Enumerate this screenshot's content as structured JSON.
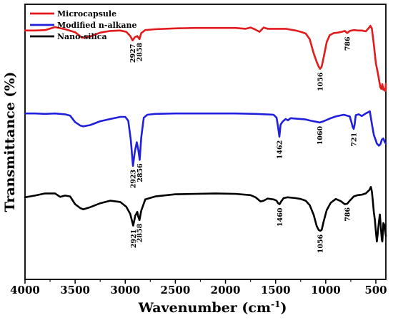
{
  "chart_data": {
    "type": "line",
    "title": "",
    "xlabel": "Wavenumber (cm",
    "xlabel_sup": "-1",
    "xlabel_end": ")",
    "ylabel": "Transmittance (%)",
    "xlim": [
      4000,
      400
    ],
    "x_reversed": true,
    "y_ticks_shown": false,
    "xticks": [
      "4000",
      "3500",
      "3000",
      "2500",
      "2000",
      "1500",
      "1000",
      "500"
    ],
    "xtick_values": [
      4000,
      3500,
      3000,
      2500,
      2000,
      1500,
      1000,
      500
    ],
    "grid": false,
    "legend_position": "top-left",
    "series": [
      {
        "name": "Microcapsule",
        "color": "#e31a1c",
        "x": [
          4000,
          3900,
          3800,
          3700,
          3600,
          3500,
          3430,
          3350,
          3250,
          3150,
          3050,
          2990,
          2950,
          2927,
          2905,
          2880,
          2858,
          2840,
          2800,
          2700,
          2500,
          2300,
          2100,
          1900,
          1800,
          1750,
          1700,
          1660,
          1620,
          1580,
          1500,
          1400,
          1300,
          1250,
          1200,
          1160,
          1120,
          1090,
          1070,
          1056,
          1040,
          1020,
          990,
          960,
          920,
          880,
          840,
          810,
          786,
          760,
          720,
          680,
          640,
          600,
          570,
          555,
          540,
          520,
          500,
          480,
          465,
          455,
          445,
          435,
          425,
          415,
          405,
          400
        ],
        "y": [
          97.9,
          97.9,
          98.0,
          98.7,
          98.2,
          97.5,
          96.2,
          96.5,
          97.4,
          97.8,
          97.9,
          97.6,
          96.6,
          95.6,
          96.3,
          96.6,
          95.9,
          97.3,
          98.0,
          98.2,
          98.4,
          98.5,
          98.5,
          98.5,
          98.3,
          98.6,
          98.1,
          97.6,
          98.6,
          98.3,
          98.3,
          98.3,
          97.9,
          97.6,
          97.2,
          95.9,
          92.6,
          90.6,
          89.5,
          89.0,
          89.5,
          91.7,
          95.2,
          96.8,
          97.3,
          97.4,
          97.6,
          97.8,
          97.3,
          97.8,
          98.0,
          97.9,
          97.9,
          97.7,
          98.5,
          99.0,
          98.4,
          94.6,
          90.3,
          88.0,
          86.0,
          84.7,
          84.3,
          85.4,
          84.1,
          84.3,
          83.8,
          85.5
        ],
        "peak_labels": [
          {
            "text": "2927",
            "x": 2927,
            "y": 95.6
          },
          {
            "text": "2858",
            "x": 2858,
            "y": 95.9
          },
          {
            "text": "1056",
            "x": 1056,
            "y": 89.0
          },
          {
            "text": "786",
            "x": 786,
            "y": 97.3
          }
        ]
      },
      {
        "name": "Modified n-alkane",
        "color": "#1f1fdc",
        "x": [
          4000,
          3900,
          3800,
          3700,
          3600,
          3550,
          3500,
          3450,
          3420,
          3350,
          3250,
          3150,
          3050,
          3000,
          2970,
          2945,
          2923,
          2905,
          2885,
          2870,
          2856,
          2840,
          2815,
          2780,
          2700,
          2500,
          2300,
          2100,
          1900,
          1700,
          1600,
          1520,
          1490,
          1475,
          1462,
          1450,
          1430,
          1400,
          1377,
          1350,
          1300,
          1200,
          1150,
          1100,
          1060,
          1020,
          960,
          900,
          820,
          760,
          740,
          730,
          721,
          712,
          700,
          670,
          640,
          600,
          560,
          540,
          520,
          500,
          490,
          470,
          455,
          440,
          425,
          410,
          400
        ],
        "y": [
          78.6,
          78.6,
          78.5,
          78.6,
          78.4,
          78.1,
          76.6,
          75.8,
          75.6,
          75.9,
          76.8,
          77.3,
          77.8,
          77.8,
          76.9,
          72.5,
          66.4,
          69.6,
          71.9,
          70.2,
          67.8,
          73.1,
          77.6,
          78.3,
          78.5,
          78.6,
          78.6,
          78.6,
          78.6,
          78.5,
          78.4,
          78.3,
          77.6,
          75.4,
          73.2,
          76.0,
          76.7,
          77.3,
          77.0,
          77.5,
          77.4,
          77.2,
          76.9,
          76.7,
          76.5,
          76.8,
          77.4,
          77.9,
          78.3,
          77.9,
          76.3,
          75.4,
          75.0,
          75.9,
          78.2,
          78.4,
          78.0,
          78.6,
          79.1,
          76.2,
          73.6,
          72.3,
          71.6,
          71.1,
          71.4,
          72.5,
          72.8,
          71.9,
          71.6
        ],
        "peak_labels": [
          {
            "text": "2923",
            "x": 2923,
            "y": 66.4
          },
          {
            "text": "2856",
            "x": 2856,
            "y": 67.8
          },
          {
            "text": "1462",
            "x": 1462,
            "y": 73.2
          },
          {
            "text": "1060",
            "x": 1060,
            "y": 76.5
          },
          {
            "text": "721",
            "x": 721,
            "y": 75.0
          }
        ]
      },
      {
        "name": "Nano-silica",
        "color": "#000000",
        "x": [
          4000,
          3900,
          3800,
          3700,
          3650,
          3600,
          3550,
          3500,
          3450,
          3420,
          3350,
          3250,
          3150,
          3050,
          2990,
          2950,
          2921,
          2900,
          2880,
          2870,
          2858,
          2840,
          2800,
          2700,
          2500,
          2300,
          2100,
          1900,
          1750,
          1700,
          1650,
          1620,
          1580,
          1520,
          1490,
          1475,
          1460,
          1445,
          1420,
          1380,
          1300,
          1250,
          1200,
          1160,
          1120,
          1090,
          1070,
          1056,
          1040,
          1020,
          990,
          950,
          900,
          850,
          810,
          786,
          760,
          720,
          680,
          640,
          600,
          565,
          550,
          540,
          530,
          520,
          510,
          500,
          490,
          480,
          470,
          460,
          450,
          440,
          435,
          425,
          415,
          400
        ],
        "y": [
          59.1,
          59.5,
          60.0,
          60.0,
          59.2,
          59.5,
          59.3,
          57.5,
          56.6,
          56.3,
          56.8,
          57.7,
          58.3,
          58.0,
          56.9,
          55.2,
          52.5,
          54.8,
          55.7,
          54.6,
          53.8,
          56.0,
          58.6,
          59.3,
          59.8,
          59.9,
          60.0,
          59.9,
          59.6,
          59.1,
          58.1,
          58.3,
          58.8,
          58.6,
          58.3,
          57.7,
          57.5,
          58.1,
          58.9,
          59.1,
          58.9,
          58.7,
          58.3,
          57.3,
          55.0,
          52.4,
          51.5,
          51.3,
          51.5,
          53.5,
          56.1,
          57.8,
          58.7,
          58.2,
          57.5,
          57.6,
          58.3,
          59.3,
          59.6,
          59.7,
          60.0,
          60.8,
          61.5,
          60.5,
          58.2,
          55.6,
          53.9,
          51.2,
          48.8,
          50.9,
          53.3,
          55.1,
          52.1,
          49.2,
          48.8,
          53.1,
          52.7,
          50.1
        ],
        "peak_labels": [
          {
            "text": "2921",
            "x": 2921,
            "y": 52.5
          },
          {
            "text": "2858",
            "x": 2858,
            "y": 53.8
          },
          {
            "text": "1460",
            "x": 1460,
            "y": 57.5
          },
          {
            "text": "1056",
            "x": 1056,
            "y": 51.3
          },
          {
            "text": "786",
            "x": 786,
            "y": 57.6
          }
        ]
      }
    ]
  }
}
